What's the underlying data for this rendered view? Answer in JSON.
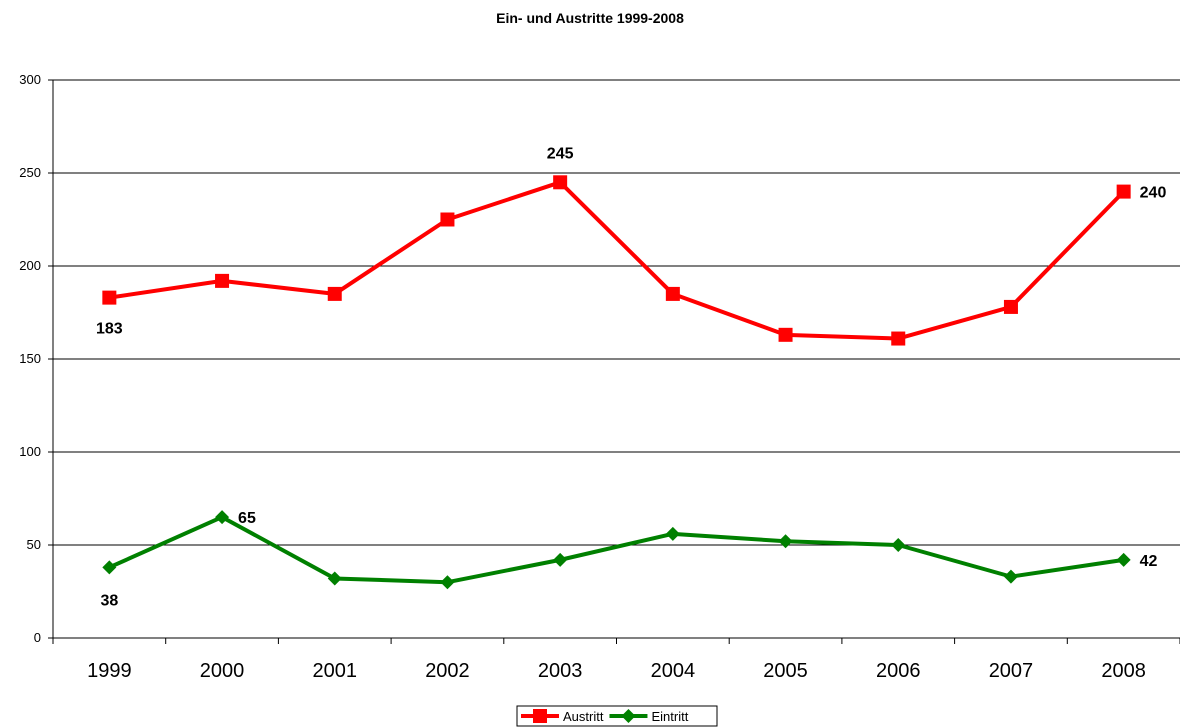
{
  "chart_data": {
    "type": "line",
    "title": "Ein- und Austritte 1999-2008",
    "xlabel": "",
    "ylabel": "",
    "categories": [
      "1999",
      "2000",
      "2001",
      "2002",
      "2003",
      "2004",
      "2005",
      "2006",
      "2007",
      "2008"
    ],
    "ylim": [
      0,
      300
    ],
    "yticks": [
      0,
      50,
      100,
      150,
      200,
      250,
      300
    ],
    "grid": true,
    "legend": "bottom-center",
    "series": [
      {
        "name": "Austritt",
        "color": "#ff0000",
        "marker": "square",
        "values": [
          183,
          192,
          185,
          225,
          245,
          185,
          163,
          161,
          178,
          240
        ],
        "labels": [
          {
            "index": 0,
            "text": "183"
          },
          {
            "index": 4,
            "text": "245"
          },
          {
            "index": 9,
            "text": "240"
          }
        ]
      },
      {
        "name": "Eintritt",
        "color": "#008000",
        "marker": "diamond",
        "values": [
          38,
          65,
          32,
          30,
          42,
          56,
          52,
          50,
          33,
          42
        ],
        "labels": [
          {
            "index": 0,
            "text": "38"
          },
          {
            "index": 1,
            "text": "65"
          },
          {
            "index": 9,
            "text": "42"
          }
        ]
      }
    ]
  }
}
